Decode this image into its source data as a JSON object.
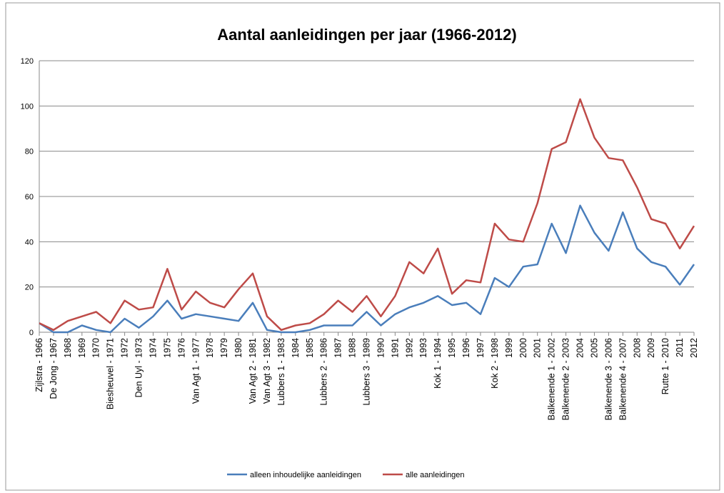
{
  "chart_data": {
    "type": "line",
    "title": "Aantal aanleidingen per jaar (1966-2012)",
    "categories": [
      "Zijlstra - 1966",
      "De Jong - 1967",
      "1968",
      "1969",
      "1970",
      "Biesheuvel - 1971",
      "1972",
      "Den Uyl - 1973",
      "1974",
      "1975",
      "1976",
      "Van Agt 1 - 1977",
      "1978",
      "1979",
      "1980",
      "Van Agt 2 - 1981",
      "Van Agt 3 - 1982",
      "Lubbers 1 - 1983",
      "1984",
      "1985",
      "Lubbers 2 - 1986",
      "1987",
      "1988",
      "Lubbers 3 - 1989",
      "1990",
      "1991",
      "1992",
      "1993",
      "Kok 1 - 1994",
      "1995",
      "1996",
      "1997",
      "Kok 2 - 1998",
      "1999",
      "2000",
      "2001",
      "Balkenende 1 - 2002",
      "Balkenende 2 - 2003",
      "2004",
      "2005",
      "Balkenende 3 - 2006",
      "Balkenende 4 - 2007",
      "2008",
      "2009",
      "Rutte 1 - 2010",
      "2011",
      "2012"
    ],
    "series": [
      {
        "name": "alleen inhoudelijke aanleidingen",
        "color": "#4a7ebb",
        "values": [
          4,
          0,
          0,
          3,
          1,
          0,
          6,
          2,
          7,
          14,
          6,
          8,
          7,
          6,
          5,
          13,
          1,
          0,
          0,
          1,
          3,
          3,
          3,
          9,
          3,
          8,
          11,
          13,
          16,
          12,
          13,
          8,
          24,
          20,
          29,
          30,
          48,
          35,
          56,
          44,
          36,
          53,
          37,
          31,
          29,
          21,
          30
        ]
      },
      {
        "name": "alle aanleidingen",
        "color": "#be4b48",
        "values": [
          4,
          1,
          5,
          7,
          9,
          4,
          14,
          10,
          11,
          28,
          10,
          18,
          13,
          11,
          19,
          26,
          7,
          1,
          3,
          4,
          8,
          14,
          9,
          16,
          7,
          16,
          31,
          26,
          37,
          17,
          23,
          22,
          48,
          41,
          40,
          57,
          81,
          84,
          103,
          86,
          77,
          76,
          64,
          50,
          48,
          37,
          47
        ]
      }
    ],
    "ylim": [
      0,
      120
    ],
    "yticks": [
      0,
      20,
      40,
      60,
      80,
      100,
      120
    ],
    "grid": true,
    "legend": "bottom"
  }
}
